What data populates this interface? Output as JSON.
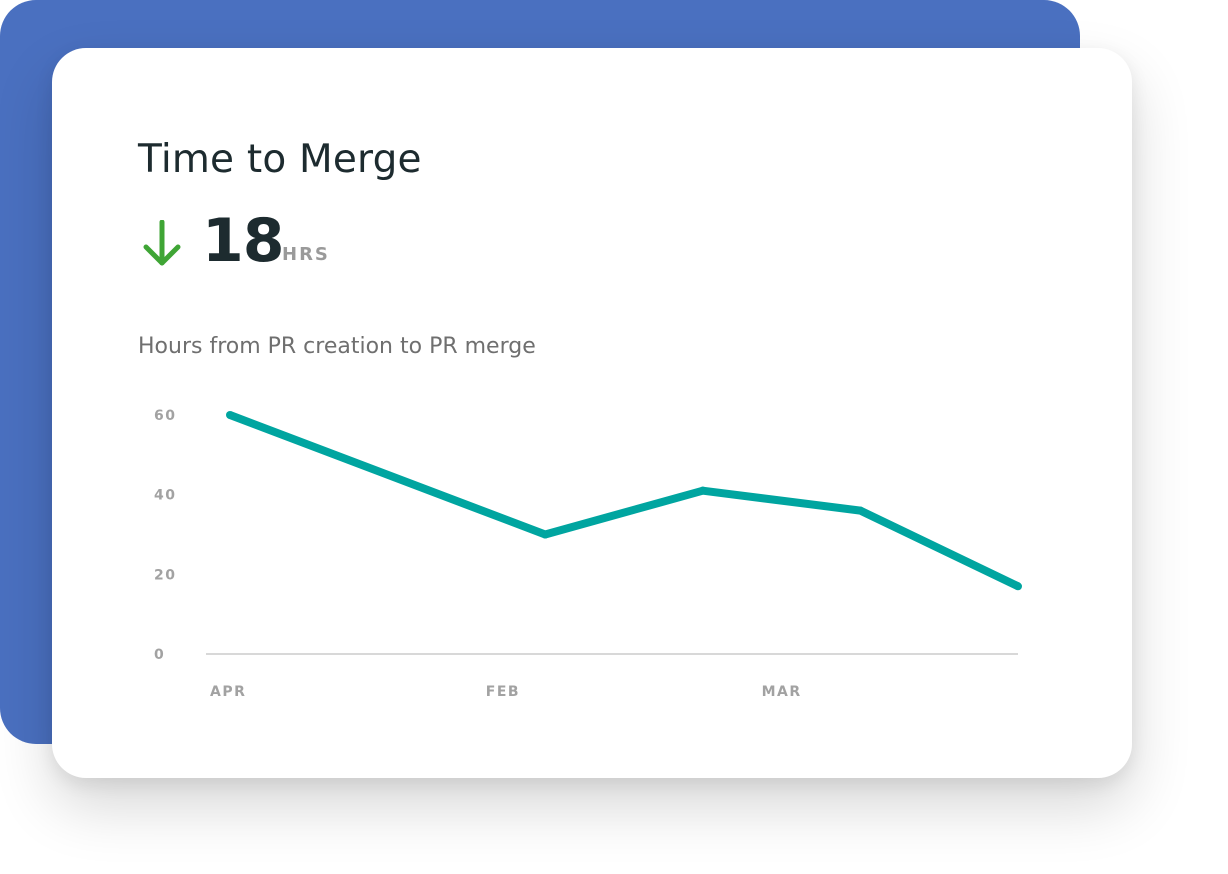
{
  "colors": {
    "backdrop": "#4a70c0",
    "line": "#00a5a0",
    "arrow": "#3fa535",
    "axis": "#d8d8d8"
  },
  "card": {
    "title": "Time to Merge",
    "metric": {
      "icon": "arrow-down-icon",
      "value": "18",
      "unit": "HRS"
    },
    "subtitle": "Hours from PR creation to PR merge"
  },
  "chart_data": {
    "type": "line",
    "title": "",
    "xlabel": "",
    "ylabel": "",
    "ylim": [
      0,
      60
    ],
    "yticks": [
      0,
      20,
      40,
      60
    ],
    "xtick_labels": [
      "APR",
      "FEB",
      "MAR"
    ],
    "xtick_positions": [
      0,
      1.75,
      3.5
    ],
    "x": [
      0,
      2,
      3,
      4,
      5
    ],
    "values": [
      60,
      30,
      41,
      36,
      17
    ],
    "grid": false,
    "legend": "none"
  }
}
